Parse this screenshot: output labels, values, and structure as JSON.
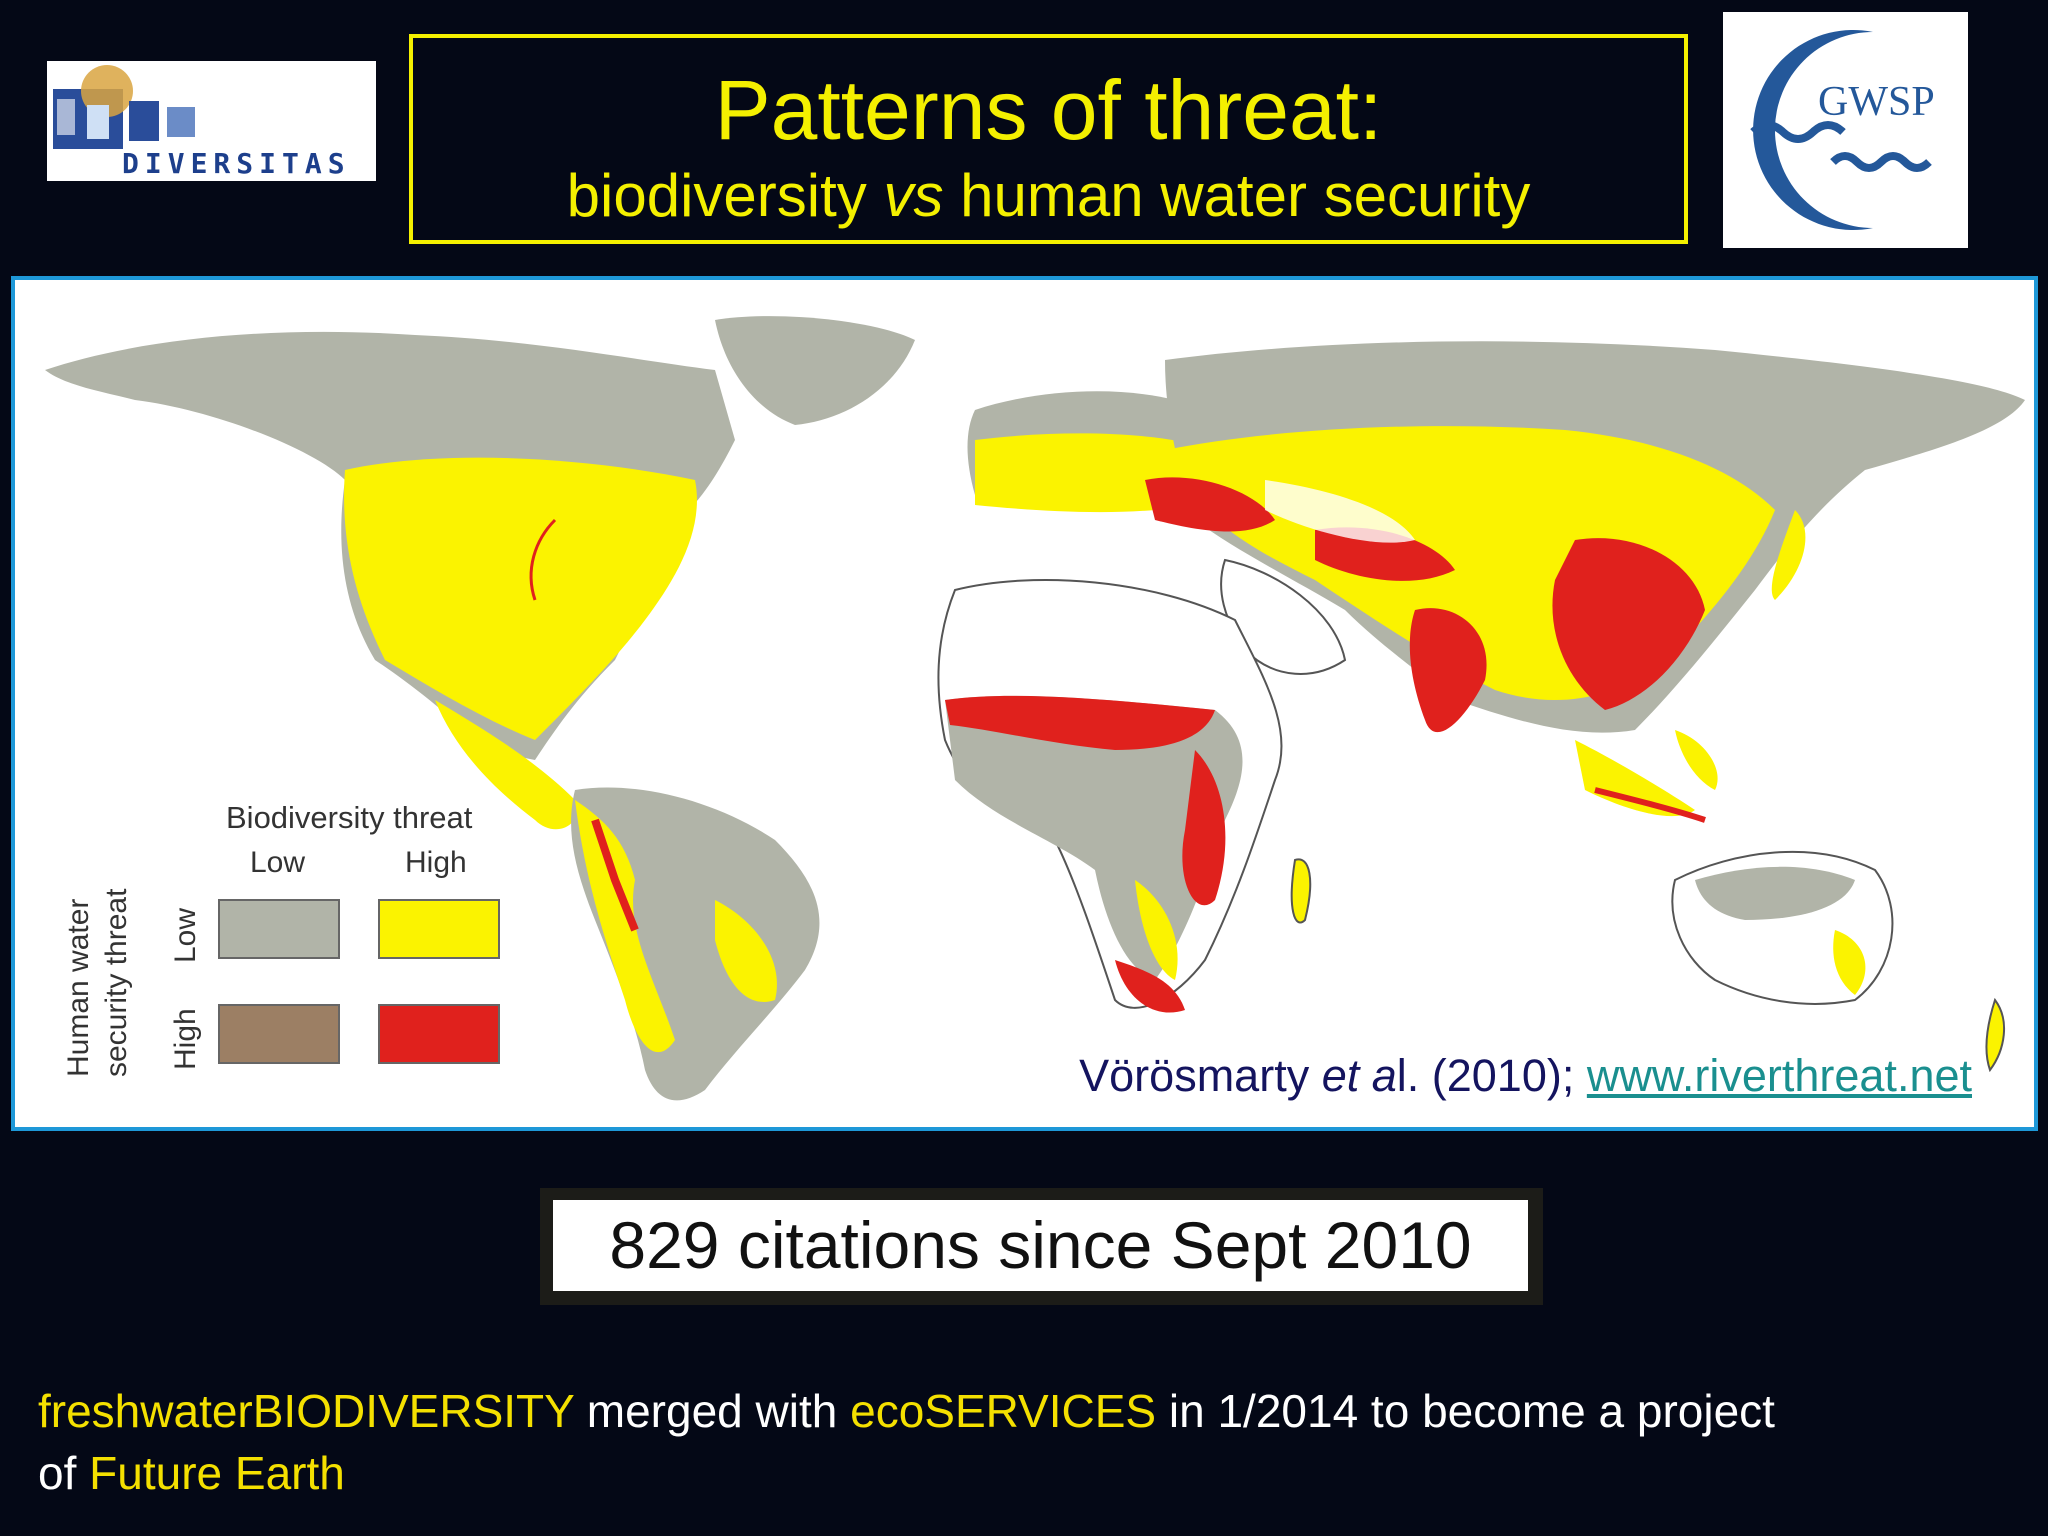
{
  "title": {
    "main": "Patterns of threat:",
    "sub_part1": "biodiversity ",
    "sub_italic": "vs",
    "sub_part2": " human water security"
  },
  "logos": {
    "left": "DIVERSITAS",
    "right": "GWSP"
  },
  "legend": {
    "title": "Biodiversity threat",
    "col_low": "Low",
    "col_high": "High",
    "row_low": "Low",
    "row_high": "High",
    "axis_title_line1": "Human water",
    "axis_title_line2": "security threat",
    "colors": {
      "low_low": "#b1b4a8",
      "low_bio_high": "#fbf300",
      "high_water_low_bio": "#9c7f64",
      "high_high": "#e0211d"
    }
  },
  "citation": {
    "authors": "Vörösmarty ",
    "etal": "et a",
    "rest": "l. (2010); ",
    "link": "www.riverthreat.net"
  },
  "cite_count": "829 citations since Sept 2010",
  "footer": {
    "part1": "freshwaterBIODIVERSITY",
    "part2": " merged with ",
    "part3": "ecoSERVICES",
    "part4": " in  1/2014 to become a project",
    "part5": "of ",
    "part6": "Future Earth"
  }
}
